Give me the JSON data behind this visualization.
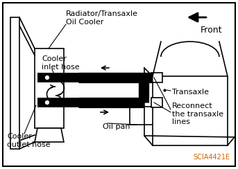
{
  "bg_color": "#ffffff",
  "border_color": "#000000",
  "blue_text_color": "#cc6600",
  "label_radiator": "Radiator/Transaxle\nOil Cooler",
  "label_inlet": "Cooler\ninlet hose",
  "label_outlet": "Cooler\noutlet hose",
  "label_transaxle": "Transaxle",
  "label_reconnect": "Reconnect\nthe transaxle\nlines",
  "label_oilpan": "Oil pan",
  "label_front": "Front",
  "label_code": "SCIA4421E",
  "fig_width": 3.43,
  "fig_height": 2.44,
  "dpi": 100
}
